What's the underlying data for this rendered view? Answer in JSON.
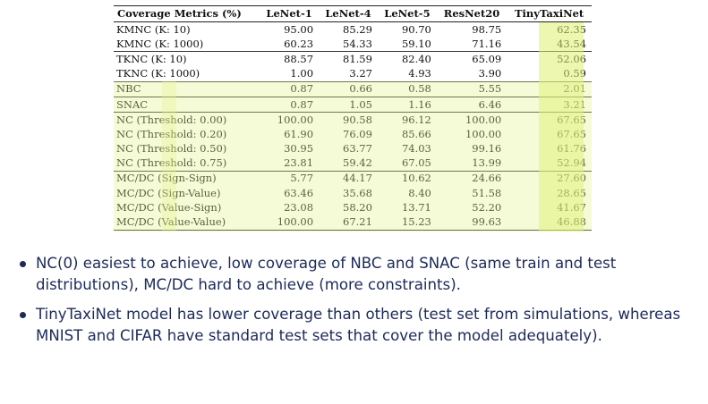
{
  "table": {
    "headers": [
      "Coverage Metrics (%)",
      "LeNet-1",
      "LeNet-4",
      "LeNet-5",
      "ResNet20",
      "TinyTaxiNet"
    ],
    "rows": [
      {
        "metric": "KMNC (K: 10)",
        "values": [
          "95.00",
          "85.29",
          "90.70",
          "98.75",
          "62.35"
        ],
        "group_start": true
      },
      {
        "metric": "KMNC (K: 1000)",
        "values": [
          "60.23",
          "54.33",
          "59.10",
          "71.16",
          "43.54"
        ]
      },
      {
        "metric": "TKNC (K: 10)",
        "values": [
          "88.57",
          "81.59",
          "82.40",
          "65.09",
          "52.06"
        ],
        "group_start": true
      },
      {
        "metric": "TKNC (K: 1000)",
        "values": [
          "1.00",
          "3.27",
          "4.93",
          "3.90",
          "0.59"
        ]
      },
      {
        "metric": "NBC",
        "values": [
          "0.87",
          "0.66",
          "0.58",
          "5.55",
          "2.01"
        ],
        "group_start": true
      },
      {
        "metric": "SNAC",
        "values": [
          "0.87",
          "1.05",
          "1.16",
          "6.46",
          "3.21"
        ],
        "group_start": true
      },
      {
        "metric": "NC (Threshold: 0.00)",
        "values": [
          "100.00",
          "90.58",
          "96.12",
          "100.00",
          "67.65"
        ],
        "group_start": true
      },
      {
        "metric": "NC (Threshold: 0.20)",
        "values": [
          "61.90",
          "76.09",
          "85.66",
          "100.00",
          "67.65"
        ]
      },
      {
        "metric": "NC (Threshold: 0.50)",
        "values": [
          "30.95",
          "63.77",
          "74.03",
          "99.16",
          "61.76"
        ]
      },
      {
        "metric": "NC (Threshold: 0.75)",
        "values": [
          "23.81",
          "59.42",
          "67.05",
          "13.99",
          "52.94"
        ]
      },
      {
        "metric": "MC/DC (Sign-Sign)",
        "values": [
          "5.77",
          "44.17",
          "10.62",
          "24.66",
          "27.60"
        ],
        "group_start": true
      },
      {
        "metric": "MC/DC (Sign-Value)",
        "values": [
          "63.46",
          "35.68",
          "8.40",
          "51.58",
          "28.65"
        ]
      },
      {
        "metric": "MC/DC (Value-Sign)",
        "values": [
          "23.08",
          "58.20",
          "13.71",
          "52.20",
          "41.67"
        ]
      },
      {
        "metric": "MC/DC (Value-Value)",
        "values": [
          "100.00",
          "67.21",
          "15.23",
          "99.63",
          "46.88"
        ]
      }
    ]
  },
  "bullets": [
    "NC(0) easiest to achieve, low coverage of NBC and SNAC (same train and test distributions), MC/DC hard to achieve (more constraints).",
    "TinyTaxiNet model has lower coverage than others (test set from simulations, whereas MNIST and CIFAR have standard test sets that cover the model adequately)."
  ],
  "colors": {
    "highlight": "#dff06e",
    "bullet_text": "#1c2a5a"
  }
}
